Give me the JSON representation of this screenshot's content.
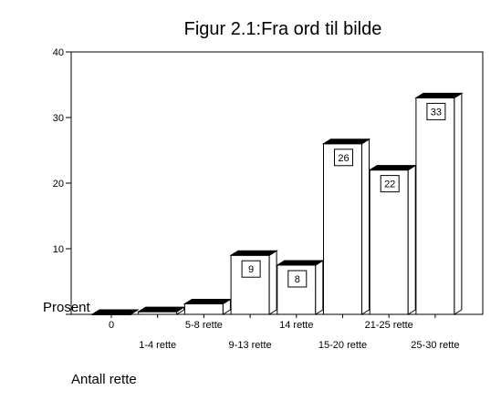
{
  "chart_data": {
    "type": "bar",
    "title": "Figur 2.1:Fra ord til bilde",
    "xlabel": "Antall rette",
    "ylabel": "Prosent",
    "ylim": [
      0,
      40
    ],
    "yticks": [
      0,
      10,
      20,
      30,
      40
    ],
    "grid": false,
    "categories": [
      "0",
      "1-4 rette",
      "5-8 rette",
      "9-13 rette",
      "14 rette",
      "15-20 rette",
      "21-25 rette",
      "25-30 rette"
    ],
    "values": [
      0,
      0.4,
      1.6,
      9,
      7.5,
      26,
      22,
      33
    ],
    "data_labels": [
      "",
      "",
      "",
      "9",
      "8",
      "26",
      "22",
      "33"
    ],
    "bar_fill": "#ffffff",
    "bar_top": "#000000",
    "bar_outline": "#000000"
  }
}
